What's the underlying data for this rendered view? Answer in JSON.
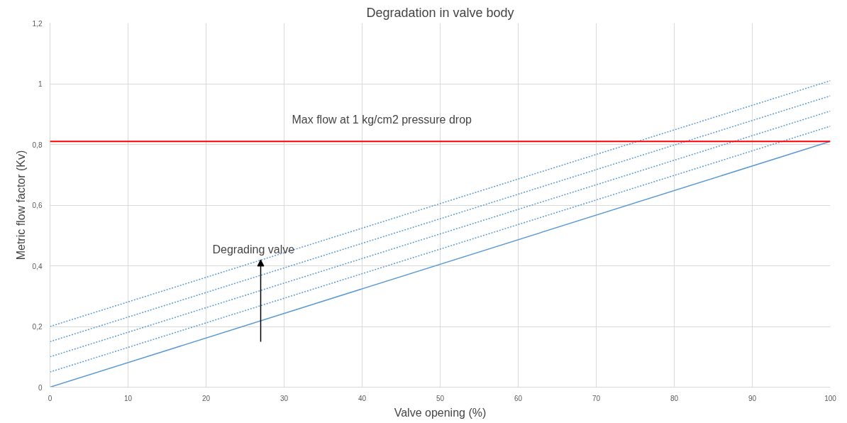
{
  "chart_data": {
    "type": "line",
    "title": "Degradation in valve body",
    "xlabel": "Valve opening (%)",
    "ylabel": "Metric flow factor (Kv)",
    "x": [
      0,
      100
    ],
    "series": [
      {
        "color": "#5b9bd5",
        "values": [
          0,
          0.81
        ],
        "line_style": "solid"
      },
      {
        "color": "#5b9bd5",
        "values": [
          0.05,
          0.86
        ],
        "line_style": "dotted"
      },
      {
        "color": "#5b9bd5",
        "values": [
          0.1,
          0.91
        ],
        "line_style": "dotted"
      },
      {
        "color": "#5b9bd5",
        "values": [
          0.15,
          0.96
        ],
        "line_style": "dotted"
      },
      {
        "color": "#5b9bd5",
        "values": [
          0.2,
          1.01
        ],
        "line_style": "dotted"
      }
    ],
    "xlim": [
      0,
      100
    ],
    "xticks": [
      0,
      10,
      20,
      30,
      40,
      50,
      60,
      70,
      80,
      90,
      100
    ],
    "ylim": [
      0,
      1.2
    ],
    "yticks": [
      0,
      {
        "value": 0.2,
        "label": "0,2"
      },
      {
        "value": 0.4,
        "label": "0,4"
      },
      {
        "value": 0.6,
        "label": "0,6"
      },
      {
        "value": 0.8,
        "label": "0,8"
      },
      1,
      {
        "value": 1.2,
        "label": "1,2"
      }
    ],
    "ref_lines": [
      {
        "axis": "y",
        "value": 0.81,
        "label": "Max flow at 1 kg/cm2 pressure drop",
        "color": "#ff0000",
        "line_style": "solid"
      }
    ],
    "annotations": [
      {
        "text": "Degrading valve",
        "x": 27,
        "y": 0.42
      }
    ],
    "grid": true,
    "marker": "none"
  }
}
